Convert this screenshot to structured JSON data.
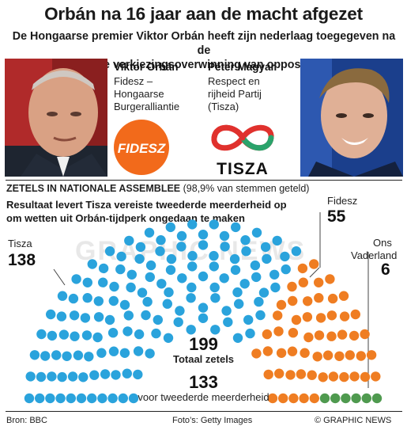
{
  "header": {
    "title": "Orbán na 16 jaar aan de macht afgezet",
    "subtitle_line1": "De Hongaarse premier Viktor Orbán heeft zijn nederlaag toegegeven na de",
    "subtitle_line2": "verpletterende verkiezingsoverwinning van oppositiepartij Tisza"
  },
  "candidates": {
    "left": {
      "name": "Viktor Orbán",
      "party_lines": [
        "Fidesz –",
        "Hongaarse",
        "Burgeralliantie"
      ],
      "logo_text": "FIDESZ"
    },
    "right": {
      "name": "Péter Magyar",
      "party_lines": [
        "Respect en",
        "rijheid Partij",
        "(Tisza)"
      ],
      "logo_text": "TISZA"
    }
  },
  "section": {
    "heading_bold": "Zetels in nationale assemblee",
    "heading_rest": " (98,9% van stemmen geteld)",
    "note_line1": "Resultaat levert Tisza vereiste tweederde meerderheid op",
    "note_line2": "om wetten uit Orbán-tijdperk ongedaan te maken"
  },
  "results": {
    "tisza": {
      "label": "Tisza",
      "seats": "138"
    },
    "fidesz": {
      "label": "Fidesz",
      "seats": "55"
    },
    "onsvaderland": {
      "label_line1": "Ons",
      "label_line2": "Vaderland",
      "seats": "6"
    },
    "total_number": "199",
    "total_label": "Totaal zetels",
    "majority_number": "133",
    "majority_label": "voor tweederde meerderheid"
  },
  "chart_data": {
    "type": "hemicycle",
    "total": 199,
    "series": [
      {
        "name": "Tisza",
        "seats": 138,
        "color": "#2aa3dc"
      },
      {
        "name": "Fidesz",
        "seats": 55,
        "color": "#ef7d22"
      },
      {
        "name": "Ons Vaderland",
        "seats": 6,
        "color": "#4f9a4f"
      }
    ]
  },
  "footer": {
    "source": "Bron: BBC",
    "photo_credit": "Foto’s: Getty Images",
    "copyright": "© GRAPHIC NEWS"
  },
  "watermark": "GRAPHIC NEWS",
  "colors": {
    "fidesz_orange": "#f26a1b",
    "tisza_red": "#e0312d",
    "tisza_green": "#2aa36b"
  }
}
